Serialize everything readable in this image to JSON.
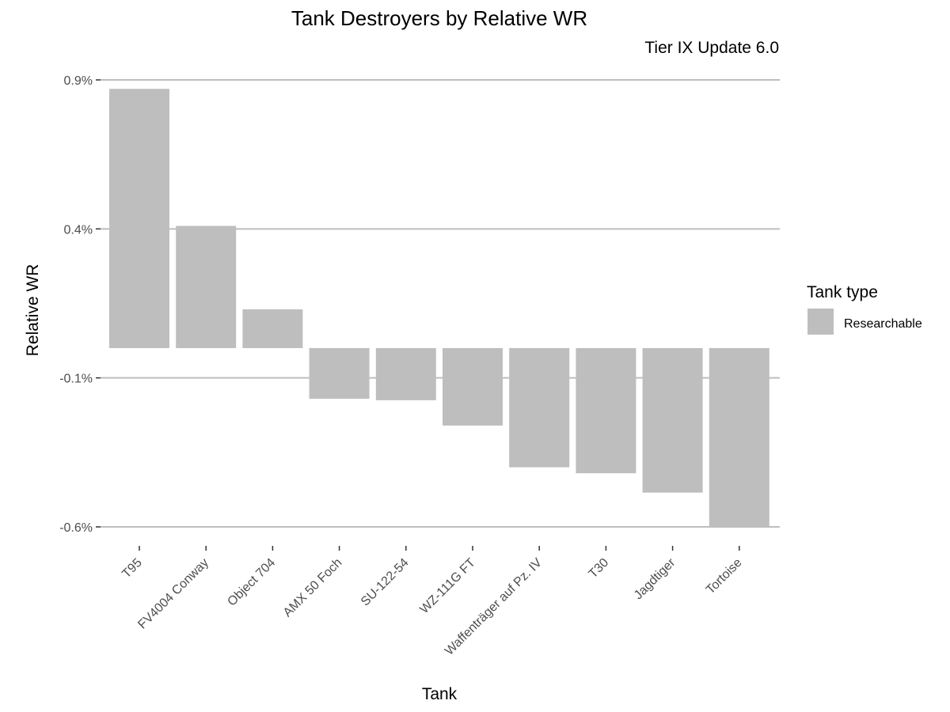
{
  "chart_data": {
    "type": "bar",
    "title": "Tank Destroyers by Relative WR",
    "subtitle": "Tier IX Update 6.0",
    "xlabel": "Tank",
    "ylabel": "Relative WR",
    "categories": [
      "T95",
      "FV4004 Conway",
      "Object 704",
      "AMX 50 Foch",
      "SU-122-54",
      "WZ-111G FT",
      "Waffenträger auf Pz. IV",
      "T30",
      "Jagdtiger",
      "Tortoise"
    ],
    "values": [
      0.87,
      0.41,
      0.13,
      -0.17,
      -0.175,
      -0.26,
      -0.4,
      -0.42,
      -0.485,
      -0.6
    ],
    "yticks": [
      0.9,
      0.4,
      -0.1,
      -0.6
    ],
    "ytick_labels": [
      "0.9%",
      "0.4%",
      "-0.1%",
      "-0.6%"
    ],
    "ylim": [
      -0.6,
      0.9
    ],
    "bar_color": "#bebebe",
    "grid": true,
    "legend": {
      "title": "Tank type",
      "position": "right",
      "items": [
        {
          "label": "Researchable",
          "color": "#bebebe"
        }
      ]
    }
  }
}
